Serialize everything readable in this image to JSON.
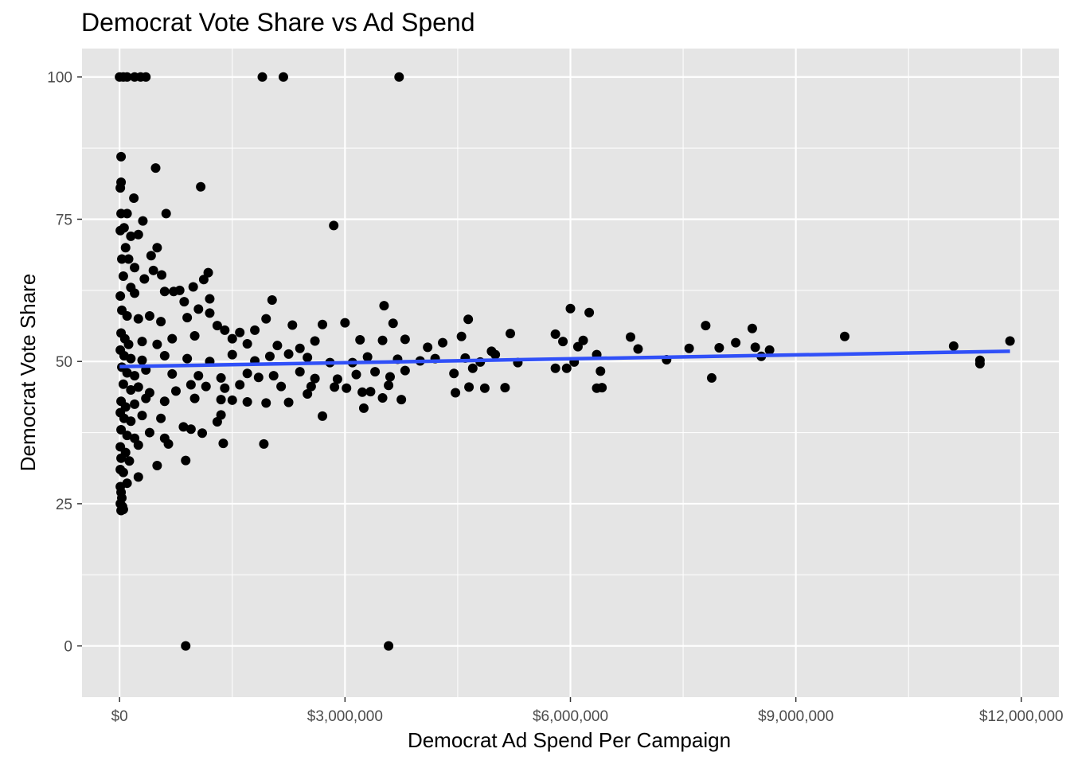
{
  "chart_data": {
    "type": "scatter",
    "title": "Democrat Vote Share vs Ad Spend",
    "xlabel": "Democrat Ad Spend Per Campaign",
    "ylabel": "Democrat Vote Share",
    "xlim": [
      -500000,
      12500000
    ],
    "ylim": [
      -9,
      105
    ],
    "x_ticks": [
      {
        "value": 0,
        "label": "$0"
      },
      {
        "value": 3000000,
        "label": "$3,000,000"
      },
      {
        "value": 6000000,
        "label": "$6,000,000"
      },
      {
        "value": 9000000,
        "label": "$9,000,000"
      },
      {
        "value": 12000000,
        "label": "$12,000,000"
      }
    ],
    "y_ticks": [
      {
        "value": 0,
        "label": "0"
      },
      {
        "value": 25,
        "label": "25"
      },
      {
        "value": 50,
        "label": "50"
      },
      {
        "value": 75,
        "label": "75"
      },
      {
        "value": 100,
        "label": "100"
      }
    ],
    "grid": true,
    "legend": "none",
    "colors": {
      "panel": "#e5e5e5",
      "grid": "#ffffff",
      "points": "#000000",
      "trend": "#3050f8"
    },
    "trend_line": {
      "x": [
        0,
        11850000
      ],
      "y": [
        49.1,
        51.8
      ]
    },
    "points": [
      [
        0,
        100
      ],
      [
        50000,
        100
      ],
      [
        100000,
        100
      ],
      [
        200000,
        100
      ],
      [
        280000,
        100
      ],
      [
        350000,
        100
      ],
      [
        1900000,
        100
      ],
      [
        2180000,
        100
      ],
      [
        3720000,
        100
      ],
      [
        20000,
        86
      ],
      [
        480000,
        84
      ],
      [
        1080000,
        80.7
      ],
      [
        20000,
        81.5
      ],
      [
        10000,
        80.5
      ],
      [
        2850000,
        73.9
      ],
      [
        620000,
        76
      ],
      [
        100000,
        76
      ],
      [
        20000,
        76
      ],
      [
        190000,
        78.7
      ],
      [
        310000,
        74.7
      ],
      [
        10000,
        73
      ],
      [
        60000,
        73.5
      ],
      [
        150000,
        72
      ],
      [
        250000,
        72.3
      ],
      [
        80000,
        70
      ],
      [
        30000,
        68
      ],
      [
        120000,
        68
      ],
      [
        500000,
        70
      ],
      [
        420000,
        68.6
      ],
      [
        200000,
        66.5
      ],
      [
        50000,
        65
      ],
      [
        330000,
        64.5
      ],
      [
        450000,
        66
      ],
      [
        560000,
        65.2
      ],
      [
        1180000,
        65.6
      ],
      [
        1120000,
        64.4
      ],
      [
        150000,
        63
      ],
      [
        200000,
        62
      ],
      [
        600000,
        62.3
      ],
      [
        720000,
        62.3
      ],
      [
        800000,
        62.5
      ],
      [
        980000,
        63.1
      ],
      [
        860000,
        60.5
      ],
      [
        1200000,
        61
      ],
      [
        2030000,
        60.8
      ],
      [
        3520000,
        59.8
      ],
      [
        6000000,
        59.3
      ],
      [
        6250000,
        58.6
      ],
      [
        7800000,
        56.3
      ],
      [
        8420000,
        55.8
      ],
      [
        9650000,
        54.4
      ],
      [
        11850000,
        53.6
      ],
      [
        11100000,
        52.7
      ],
      [
        10000,
        61.5
      ],
      [
        30000,
        59
      ],
      [
        100000,
        58
      ],
      [
        250000,
        57.5
      ],
      [
        400000,
        58
      ],
      [
        550000,
        57
      ],
      [
        900000,
        57.7
      ],
      [
        1050000,
        59.2
      ],
      [
        1200000,
        58.5
      ],
      [
        1300000,
        56.3
      ],
      [
        1400000,
        55.5
      ],
      [
        1600000,
        55.1
      ],
      [
        1800000,
        55.5
      ],
      [
        1950000,
        57.5
      ],
      [
        2300000,
        56.4
      ],
      [
        2700000,
        56.5
      ],
      [
        3000000,
        56.8
      ],
      [
        3640000,
        56.7
      ],
      [
        4640000,
        57.4
      ],
      [
        5200000,
        54.9
      ],
      [
        5800000,
        54.8
      ],
      [
        6800000,
        54.3
      ],
      [
        7580000,
        52.3
      ],
      [
        7980000,
        52.4
      ],
      [
        8200000,
        53.3
      ],
      [
        8460000,
        52.5
      ],
      [
        8650000,
        52
      ],
      [
        5900000,
        53.5
      ],
      [
        6170000,
        53.7
      ],
      [
        6900000,
        52.2
      ],
      [
        20000,
        55
      ],
      [
        70000,
        54
      ],
      [
        120000,
        53
      ],
      [
        300000,
        53.5
      ],
      [
        500000,
        53
      ],
      [
        700000,
        54
      ],
      [
        1000000,
        54.5
      ],
      [
        1500000,
        54
      ],
      [
        1700000,
        53.1
      ],
      [
        2100000,
        52.8
      ],
      [
        2400000,
        52.3
      ],
      [
        2600000,
        53.6
      ],
      [
        3200000,
        53.8
      ],
      [
        3500000,
        53.7
      ],
      [
        3800000,
        53.9
      ],
      [
        4100000,
        52.5
      ],
      [
        4300000,
        53.3
      ],
      [
        4550000,
        54.4
      ],
      [
        4950000,
        51.8
      ],
      [
        6100000,
        52.6
      ],
      [
        6350000,
        51.2
      ],
      [
        7280000,
        50.3
      ],
      [
        8540000,
        50.9
      ],
      [
        11450000,
        50.2
      ],
      [
        11450000,
        49.6
      ],
      [
        10000,
        52
      ],
      [
        60000,
        51
      ],
      [
        150000,
        50.5
      ],
      [
        300000,
        50.2
      ],
      [
        600000,
        51
      ],
      [
        900000,
        50.5
      ],
      [
        1200000,
        50
      ],
      [
        1500000,
        51.2
      ],
      [
        1800000,
        50.1
      ],
      [
        2000000,
        50.9
      ],
      [
        2250000,
        51.3
      ],
      [
        2500000,
        50.7
      ],
      [
        2800000,
        49.8
      ],
      [
        3100000,
        49.8
      ],
      [
        3300000,
        50.8
      ],
      [
        3700000,
        50.4
      ],
      [
        4000000,
        50.1
      ],
      [
        4200000,
        50.5
      ],
      [
        4600000,
        50.6
      ],
      [
        4800000,
        49.9
      ],
      [
        5000000,
        51.2
      ],
      [
        5300000,
        49.8
      ],
      [
        5800000,
        48.8
      ],
      [
        5950000,
        48.8
      ],
      [
        6050000,
        49.9
      ],
      [
        6400000,
        48.3
      ],
      [
        30000,
        49
      ],
      [
        100000,
        48
      ],
      [
        200000,
        47.5
      ],
      [
        350000,
        48.5
      ],
      [
        700000,
        47.8
      ],
      [
        1050000,
        47.5
      ],
      [
        1350000,
        47.1
      ],
      [
        1700000,
        47.9
      ],
      [
        1850000,
        47.2
      ],
      [
        2050000,
        47.5
      ],
      [
        2400000,
        48.2
      ],
      [
        2600000,
        47
      ],
      [
        2900000,
        46.9
      ],
      [
        3150000,
        47.7
      ],
      [
        3400000,
        48.2
      ],
      [
        3600000,
        47.3
      ],
      [
        3800000,
        48.4
      ],
      [
        4450000,
        47.9
      ],
      [
        4700000,
        48.8
      ],
      [
        7880000,
        47.1
      ],
      [
        50000,
        46
      ],
      [
        150000,
        45
      ],
      [
        250000,
        45.5
      ],
      [
        400000,
        44.5
      ],
      [
        750000,
        44.8
      ],
      [
        950000,
        45.9
      ],
      [
        1150000,
        45.6
      ],
      [
        1400000,
        45.3
      ],
      [
        1600000,
        45.9
      ],
      [
        2150000,
        45.6
      ],
      [
        2550000,
        45.6
      ],
      [
        2860000,
        45.5
      ],
      [
        3020000,
        45.3
      ],
      [
        3230000,
        44.6
      ],
      [
        3340000,
        44.7
      ],
      [
        3580000,
        45.8
      ],
      [
        4650000,
        45.5
      ],
      [
        4860000,
        45.3
      ],
      [
        5130000,
        45.4
      ],
      [
        6350000,
        45.3
      ],
      [
        6420000,
        45.4
      ],
      [
        4470000,
        44.5
      ],
      [
        20000,
        43
      ],
      [
        80000,
        42
      ],
      [
        200000,
        42.5
      ],
      [
        350000,
        43.5
      ],
      [
        600000,
        43
      ],
      [
        1000000,
        43.5
      ],
      [
        1350000,
        43.3
      ],
      [
        1500000,
        43.2
      ],
      [
        1700000,
        42.9
      ],
      [
        1950000,
        42.7
      ],
      [
        2250000,
        42.8
      ],
      [
        2500000,
        44.3
      ],
      [
        3500000,
        43.6
      ],
      [
        3750000,
        43.3
      ],
      [
        10000,
        41
      ],
      [
        60000,
        40
      ],
      [
        150000,
        39.5
      ],
      [
        300000,
        40.5
      ],
      [
        550000,
        40
      ],
      [
        850000,
        38.5
      ],
      [
        1100000,
        37.4
      ],
      [
        1350000,
        40.6
      ],
      [
        1300000,
        39.4
      ],
      [
        2700000,
        40.4
      ],
      [
        3250000,
        41.8
      ],
      [
        20000,
        38
      ],
      [
        100000,
        37
      ],
      [
        200000,
        36.5
      ],
      [
        400000,
        37.5
      ],
      [
        600000,
        36.5
      ],
      [
        650000,
        35.5
      ],
      [
        950000,
        38.1
      ],
      [
        1380000,
        35.6
      ],
      [
        1920000,
        35.5
      ],
      [
        10000,
        35
      ],
      [
        80000,
        34
      ],
      [
        250000,
        35.3
      ],
      [
        20000,
        33
      ],
      [
        130000,
        32.5
      ],
      [
        500000,
        31.7
      ],
      [
        880000,
        32.6
      ],
      [
        10000,
        31
      ],
      [
        50000,
        30.5
      ],
      [
        250000,
        29.7
      ],
      [
        100000,
        28.6
      ],
      [
        10000,
        28
      ],
      [
        20000,
        27
      ],
      [
        30000,
        26
      ],
      [
        10000,
        25
      ],
      [
        40000,
        24.5
      ],
      [
        50000,
        24
      ],
      [
        20000,
        23.8
      ],
      [
        880000,
        0
      ],
      [
        3580000,
        0
      ]
    ]
  }
}
